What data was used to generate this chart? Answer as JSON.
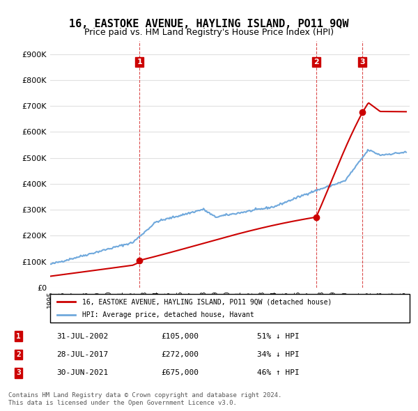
{
  "title": "16, EASTOKE AVENUE, HAYLING ISLAND, PO11 9QW",
  "subtitle": "Price paid vs. HM Land Registry's House Price Index (HPI)",
  "title_fontsize": 11,
  "subtitle_fontsize": 9,
  "ylabel": "",
  "xlabel": "",
  "ylim": [
    0,
    950000
  ],
  "yticks": [
    0,
    100000,
    200000,
    300000,
    400000,
    500000,
    600000,
    700000,
    800000,
    900000
  ],
  "ytick_labels": [
    "£0",
    "£100K",
    "£200K",
    "£300K",
    "£400K",
    "£500K",
    "£600K",
    "£700K",
    "£800K",
    "£900K"
  ],
  "hpi_color": "#6fa8dc",
  "price_color": "#cc0000",
  "transaction_color": "#cc0000",
  "background_color": "#ffffff",
  "grid_color": "#e0e0e0",
  "transactions": [
    {
      "date_num": 2002.57,
      "price": 105000,
      "label": "1"
    },
    {
      "date_num": 2017.57,
      "price": 272000,
      "label": "2"
    },
    {
      "date_num": 2021.49,
      "price": 675000,
      "label": "3"
    }
  ],
  "transaction_vline_dates": [
    2002.57,
    2017.57,
    2021.49
  ],
  "legend_property_label": "16, EASTOKE AVENUE, HAYLING ISLAND, PO11 9QW (detached house)",
  "legend_hpi_label": "HPI: Average price, detached house, Havant",
  "table_data": [
    [
      "1",
      "31-JUL-2002",
      "£105,000",
      "51% ↓ HPI"
    ],
    [
      "2",
      "28-JUL-2017",
      "£272,000",
      "34% ↓ HPI"
    ],
    [
      "3",
      "30-JUN-2021",
      "£675,000",
      "46% ↑ HPI"
    ]
  ],
  "footnote": "Contains HM Land Registry data © Crown copyright and database right 2024.\nThis data is licensed under the Open Government Licence v3.0.",
  "xmin": 1995.0,
  "xmax": 2025.5
}
